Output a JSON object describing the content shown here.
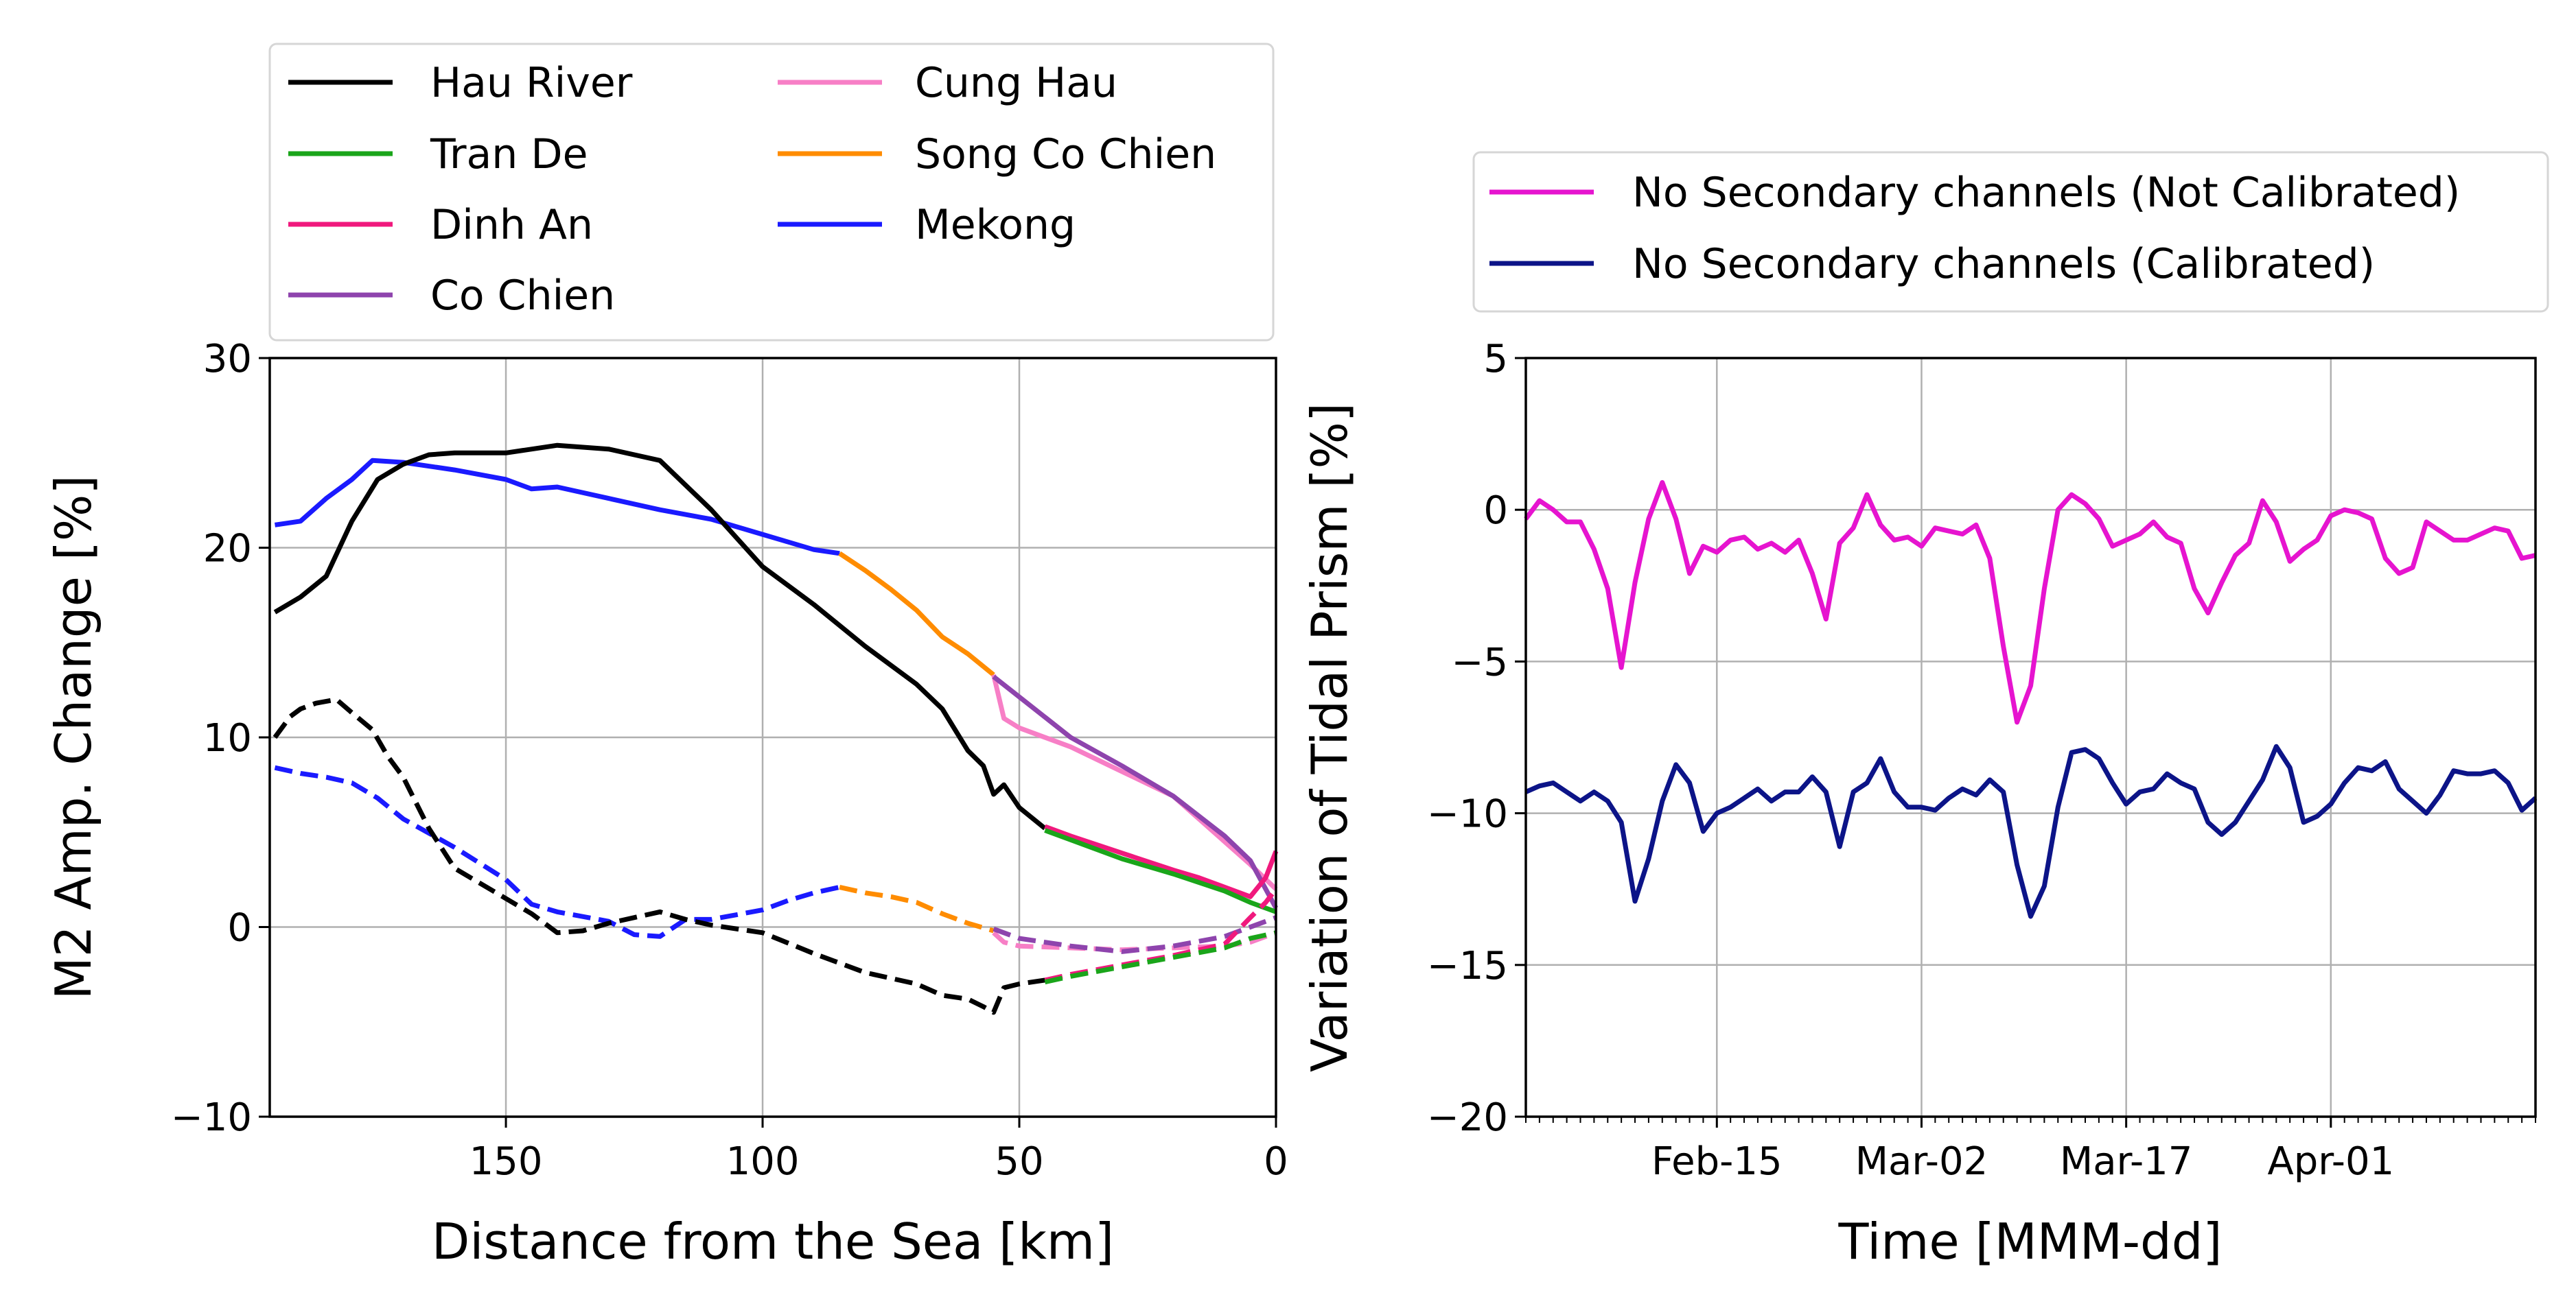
{
  "chart_data": [
    {
      "type": "line",
      "xlabel": "Distance from the Sea [km]",
      "ylabel": "M2 Amp. Change [%]",
      "xlim": [
        196,
        0
      ],
      "ylim": [
        -10,
        30
      ],
      "xticks": [
        150,
        100,
        50,
        0
      ],
      "yticks": [
        30,
        20,
        10,
        0,
        -10
      ],
      "xtick_labels": [
        "150",
        "100",
        "50",
        "0"
      ],
      "ytick_labels": [
        "30",
        "20",
        "10",
        "0",
        "−10"
      ],
      "grid": true,
      "legend_position": "top-left",
      "legend": [
        {
          "label": "Hau River",
          "color": "#000000"
        },
        {
          "label": "Tran De",
          "color": "#1aa51a"
        },
        {
          "label": "Dinh An",
          "color": "#f0197d"
        },
        {
          "label": "Co Chien",
          "color": "#8e44ad"
        },
        {
          "label": "Cung Hau",
          "color": "#f77fc6"
        },
        {
          "label": "Song Co Chien",
          "color": "#ff8c00"
        },
        {
          "label": "Mekong",
          "color": "#1a1aff"
        }
      ],
      "series": [
        {
          "name": "Mekong",
          "style": "solid",
          "color": "#1a1aff",
          "x": [
            195,
            190,
            185,
            180,
            176,
            170,
            160,
            150,
            145,
            140,
            130,
            120,
            110,
            100,
            95,
            90,
            85
          ],
          "y": [
            21.2,
            21.4,
            22.6,
            23.6,
            24.6,
            24.5,
            24.1,
            23.6,
            23.1,
            23.2,
            22.6,
            22.0,
            21.5,
            20.7,
            20.3,
            19.9,
            19.7
          ]
        },
        {
          "name": "Song Co Chien",
          "style": "solid",
          "color": "#ff8c00",
          "x": [
            85,
            80,
            75,
            70,
            65,
            60,
            55
          ],
          "y": [
            19.7,
            18.8,
            17.8,
            16.7,
            15.3,
            14.4,
            13.3
          ]
        },
        {
          "name": "Hau River",
          "style": "solid",
          "color": "#000000",
          "x": [
            195,
            190,
            185,
            180,
            175,
            170,
            165,
            160,
            150,
            140,
            130,
            120,
            110,
            100,
            90,
            80,
            70,
            65,
            60,
            57,
            55,
            53,
            50,
            45
          ],
          "y": [
            16.6,
            17.4,
            18.5,
            21.4,
            23.6,
            24.4,
            24.9,
            25.0,
            25.0,
            25.4,
            25.2,
            24.6,
            22.0,
            19.0,
            17.0,
            14.8,
            12.8,
            11.5,
            9.3,
            8.5,
            7.0,
            7.5,
            6.3,
            5.2
          ]
        },
        {
          "name": "Cung Hau",
          "style": "solid",
          "color": "#f77fc6",
          "x": [
            55,
            53,
            50,
            40,
            30,
            20,
            10,
            5,
            0
          ],
          "y": [
            13.3,
            11.0,
            10.5,
            9.5,
            8.2,
            6.9,
            4.5,
            3.3,
            2.0
          ]
        },
        {
          "name": "Co Chien",
          "style": "solid",
          "color": "#8e44ad",
          "x": [
            55,
            40,
            30,
            20,
            10,
            5,
            0
          ],
          "y": [
            13.2,
            10.0,
            8.5,
            6.9,
            4.8,
            3.5,
            1.0
          ]
        },
        {
          "name": "Dinh An",
          "style": "solid",
          "color": "#f0197d",
          "x": [
            45,
            40,
            30,
            20,
            15,
            10,
            5,
            2,
            0
          ],
          "y": [
            5.3,
            4.8,
            3.9,
            3.0,
            2.6,
            2.1,
            1.6,
            2.6,
            4.0
          ]
        },
        {
          "name": "Tran De",
          "style": "solid",
          "color": "#1aa51a",
          "x": [
            45,
            40,
            30,
            20,
            10,
            5,
            0
          ],
          "y": [
            5.1,
            4.6,
            3.6,
            2.8,
            1.9,
            1.3,
            0.8
          ]
        },
        {
          "name": "Mekong",
          "style": "dashed",
          "color": "#1a1aff",
          "x": [
            195,
            190,
            185,
            180,
            175,
            170,
            160,
            150,
            145,
            140,
            130,
            125,
            120,
            115,
            110,
            100,
            95,
            90,
            85
          ],
          "y": [
            8.4,
            8.1,
            7.9,
            7.6,
            6.8,
            5.7,
            4.2,
            2.5,
            1.2,
            0.8,
            0.3,
            -0.4,
            -0.5,
            0.4,
            0.4,
            0.9,
            1.4,
            1.8,
            2.1
          ]
        },
        {
          "name": "Song Co Chien",
          "style": "dashed",
          "color": "#ff8c00",
          "x": [
            85,
            80,
            75,
            70,
            65,
            60,
            55
          ],
          "y": [
            2.1,
            1.8,
            1.6,
            1.3,
            0.7,
            0.2,
            -0.2
          ]
        },
        {
          "name": "Hau River",
          "style": "dashed",
          "color": "#000000",
          "x": [
            195,
            192,
            190,
            187,
            183,
            180,
            176,
            173,
            170,
            165,
            160,
            155,
            150,
            145,
            140,
            135,
            130,
            125,
            120,
            115,
            110,
            100,
            90,
            80,
            70,
            65,
            60,
            57,
            55,
            53,
            50,
            45
          ],
          "y": [
            10.0,
            11.1,
            11.5,
            11.8,
            12.0,
            11.3,
            10.4,
            9.0,
            7.9,
            5.2,
            3.1,
            2.3,
            1.5,
            0.7,
            -0.3,
            -0.2,
            0.2,
            0.5,
            0.8,
            0.4,
            0.1,
            -0.3,
            -1.4,
            -2.4,
            -3.0,
            -3.6,
            -3.8,
            -4.2,
            -4.5,
            -3.2,
            -3.0,
            -2.8
          ]
        },
        {
          "name": "Cung Hau",
          "style": "dashed",
          "color": "#f77fc6",
          "x": [
            55,
            53,
            50,
            40,
            30,
            20,
            10,
            5,
            0
          ],
          "y": [
            -0.3,
            -0.8,
            -1.0,
            -1.1,
            -1.2,
            -1.1,
            -1.0,
            -0.8,
            -0.3
          ]
        },
        {
          "name": "Co Chien",
          "style": "dashed",
          "color": "#8e44ad",
          "x": [
            55,
            50,
            40,
            30,
            20,
            10,
            0
          ],
          "y": [
            -0.1,
            -0.6,
            -1.0,
            -1.3,
            -1.0,
            -0.5,
            0.5
          ]
        },
        {
          "name": "Dinh An",
          "style": "dashed",
          "color": "#f0197d",
          "x": [
            45,
            40,
            30,
            20,
            10,
            5,
            2,
            0
          ],
          "y": [
            -2.8,
            -2.5,
            -2.0,
            -1.5,
            -0.9,
            0.5,
            1.3,
            2.0
          ]
        },
        {
          "name": "Tran De",
          "style": "dashed",
          "color": "#1aa51a",
          "x": [
            45,
            40,
            30,
            20,
            10,
            5,
            0
          ],
          "y": [
            -2.9,
            -2.6,
            -2.1,
            -1.6,
            -1.1,
            -0.6,
            -0.3
          ]
        }
      ]
    },
    {
      "type": "line",
      "xlabel": "Time [MMM-dd]",
      "ylabel": "Variation of Tidal Prism [%]",
      "xlim": [
        0,
        74
      ],
      "ylim": [
        -20,
        5
      ],
      "xticks": [
        14,
        29,
        44,
        59
      ],
      "xtick_labels": [
        "Feb-15",
        "Mar-02",
        "Mar-17",
        "Apr-01"
      ],
      "yticks": [
        5,
        0,
        -5,
        -10,
        -15,
        -20
      ],
      "ytick_labels": [
        "5",
        "0",
        "−5",
        "−10",
        "−15",
        "−20"
      ],
      "minor_xticks_per_day": true,
      "grid": true,
      "legend_position": "top-right",
      "legend": [
        {
          "label": "No Secondary channels (Not Calibrated)",
          "color": "#e614cf"
        },
        {
          "label": "No Secondary channels (Calibrated)",
          "color": "#0c1488"
        }
      ],
      "series": [
        {
          "name": "No Secondary channels (Not Calibrated)",
          "color": "#e614cf",
          "x": [
            0,
            1,
            2,
            3,
            4,
            5,
            6,
            7,
            8,
            9,
            10,
            11,
            12,
            13,
            14,
            15,
            16,
            17,
            18,
            19,
            20,
            21,
            22,
            23,
            24,
            25,
            26,
            27,
            28,
            29,
            30,
            31,
            32,
            33,
            34,
            35,
            36,
            37,
            38,
            39,
            40,
            41,
            42,
            43,
            44,
            45,
            46,
            47,
            48,
            49,
            50,
            51,
            52,
            53,
            54,
            55,
            56,
            57,
            58,
            59,
            60,
            61,
            62,
            63,
            64,
            65,
            66,
            67,
            68,
            69,
            70,
            71,
            72,
            73,
            74
          ],
          "y": [
            -0.3,
            0.3,
            0.0,
            -0.4,
            -0.4,
            -1.3,
            -2.6,
            -5.2,
            -2.4,
            -0.3,
            0.9,
            -0.3,
            -2.1,
            -1.2,
            -1.4,
            -1.0,
            -0.9,
            -1.3,
            -1.1,
            -1.4,
            -1.0,
            -2.1,
            -3.6,
            -1.1,
            -0.6,
            0.5,
            -0.5,
            -1.0,
            -0.9,
            -1.2,
            -0.6,
            -0.7,
            -0.8,
            -0.5,
            -1.6,
            -4.5,
            -7.0,
            -5.8,
            -2.6,
            0.0,
            0.5,
            0.2,
            -0.3,
            -1.2,
            -1.0,
            -0.8,
            -0.4,
            -0.9,
            -1.1,
            -2.6,
            -3.4,
            -2.4,
            -1.5,
            -1.1,
            0.3,
            -0.4,
            -1.7,
            -1.3,
            -1.0,
            -0.2,
            0.0,
            -0.1,
            -0.3,
            -1.6,
            -2.1,
            -1.9,
            -0.4,
            -0.7,
            -1.0,
            -1.0,
            -0.8,
            -0.6,
            -0.7,
            -1.6,
            -1.5
          ]
        },
        {
          "name": "No Secondary channels (Calibrated)",
          "color": "#0c1488",
          "x": [
            0,
            1,
            2,
            3,
            4,
            5,
            6,
            7,
            8,
            9,
            10,
            11,
            12,
            13,
            14,
            15,
            16,
            17,
            18,
            19,
            20,
            21,
            22,
            23,
            24,
            25,
            26,
            27,
            28,
            29,
            30,
            31,
            32,
            33,
            34,
            35,
            36,
            37,
            38,
            39,
            40,
            41,
            42,
            43,
            44,
            45,
            46,
            47,
            48,
            49,
            50,
            51,
            52,
            53,
            54,
            55,
            56,
            57,
            58,
            59,
            60,
            61,
            62,
            63,
            64,
            65,
            66,
            67,
            68,
            69,
            70,
            71,
            72,
            73,
            74
          ],
          "y": [
            -9.3,
            -9.1,
            -9.0,
            -9.3,
            -9.6,
            -9.3,
            -9.6,
            -10.3,
            -12.9,
            -11.5,
            -9.6,
            -8.4,
            -9.0,
            -10.6,
            -10.0,
            -9.8,
            -9.5,
            -9.2,
            -9.6,
            -9.3,
            -9.3,
            -8.8,
            -9.3,
            -11.1,
            -9.3,
            -9.0,
            -8.2,
            -9.3,
            -9.8,
            -9.8,
            -9.9,
            -9.5,
            -9.2,
            -9.4,
            -8.9,
            -9.3,
            -11.7,
            -13.4,
            -12.4,
            -9.8,
            -8.0,
            -7.9,
            -8.2,
            -9.0,
            -9.7,
            -9.3,
            -9.2,
            -8.7,
            -9.0,
            -9.2,
            -10.3,
            -10.7,
            -10.3,
            -9.6,
            -8.9,
            -7.8,
            -8.5,
            -10.3,
            -10.1,
            -9.7,
            -9.0,
            -8.5,
            -8.6,
            -8.3,
            -9.2,
            -9.6,
            -10.0,
            -9.4,
            -8.6,
            -8.7,
            -8.7,
            -8.6,
            -9.0,
            -9.9,
            -9.5
          ]
        }
      ]
    }
  ]
}
